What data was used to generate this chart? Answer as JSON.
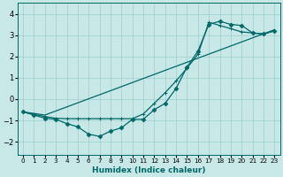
{
  "xlabel": "Humidex (Indice chaleur)",
  "bg_color": "#c8e8e8",
  "grid_color": "#9ecece",
  "line_color": "#006868",
  "xlim": [
    -0.5,
    23.5
  ],
  "ylim": [
    -2.6,
    4.5
  ],
  "xticks": [
    0,
    1,
    2,
    3,
    4,
    5,
    6,
    7,
    8,
    9,
    10,
    11,
    12,
    13,
    14,
    15,
    16,
    17,
    18,
    19,
    20,
    21,
    22,
    23
  ],
  "yticks": [
    -2,
    -1,
    0,
    1,
    2,
    3,
    4
  ],
  "curve1_x": [
    0,
    1,
    2,
    3,
    4,
    5,
    6,
    7,
    8,
    9,
    10,
    11,
    12,
    13,
    14,
    15,
    16,
    17,
    18,
    19,
    20,
    21,
    22,
    23
  ],
  "curve1_y": [
    -0.6,
    -0.75,
    -0.9,
    -0.95,
    -1.15,
    -1.3,
    -1.65,
    -1.75,
    -1.5,
    -1.35,
    -0.95,
    -0.95,
    -0.5,
    -0.2,
    0.5,
    1.5,
    2.25,
    3.5,
    3.65,
    3.5,
    3.45,
    3.1,
    3.05,
    3.2
  ],
  "curve2_x": [
    0,
    2,
    23
  ],
  "curve2_y": [
    -0.6,
    -0.75,
    3.25
  ],
  "curve3_x": [
    0,
    1,
    2,
    3,
    4,
    5,
    6,
    7,
    8,
    9,
    10,
    11,
    12,
    13,
    14,
    15,
    16,
    17,
    18,
    19,
    20,
    21,
    22,
    23
  ],
  "curve3_y": [
    -0.6,
    -0.72,
    -0.82,
    -0.9,
    -0.92,
    -0.92,
    -0.92,
    -0.92,
    -0.92,
    -0.92,
    -0.92,
    -0.7,
    -0.2,
    0.3,
    0.85,
    1.45,
    2.1,
    3.6,
    3.45,
    3.3,
    3.15,
    3.1,
    3.05,
    3.2
  ]
}
